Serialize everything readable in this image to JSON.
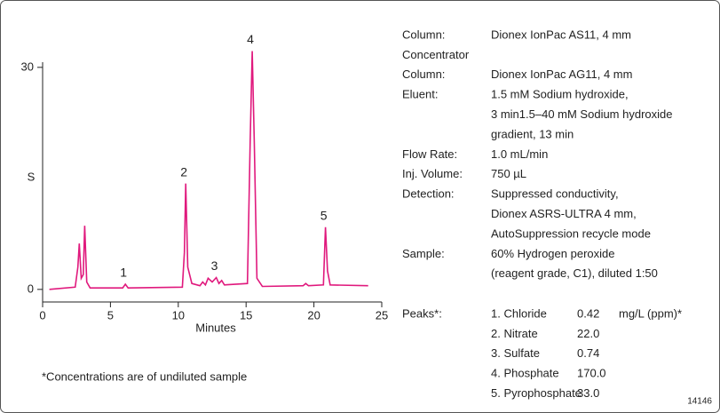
{
  "chart_data": {
    "type": "line",
    "x": [
      0.5,
      2.4,
      2.6,
      2.7,
      2.85,
      3.0,
      3.1,
      3.25,
      3.5,
      5.9,
      6.1,
      6.3,
      10.3,
      10.45,
      10.55,
      10.7,
      11.0,
      11.6,
      11.8,
      12.0,
      12.2,
      12.5,
      12.8,
      13.0,
      13.2,
      13.4,
      15.1,
      15.3,
      15.45,
      15.6,
      15.8,
      16.2,
      19.2,
      19.4,
      19.6,
      20.7,
      20.85,
      21.0,
      21.2,
      24.0
    ],
    "values": [
      0,
      0.3,
      3,
      6.2,
      1.5,
      2,
      8.6,
      1,
      0.2,
      0.2,
      0.7,
      0.2,
      0.3,
      5,
      14.3,
      3,
      0.8,
      0.5,
      1,
      0.6,
      1.5,
      1.0,
      1.6,
      0.8,
      1.2,
      0.6,
      0.8,
      20,
      32.2,
      20,
      1.5,
      0.4,
      0.5,
      0.8,
      0.5,
      0.6,
      8.4,
      2.5,
      0.6,
      0.5
    ],
    "color": "#e0197d",
    "xlim": [
      0,
      25
    ],
    "xticks": [
      0,
      5,
      10,
      15,
      20,
      25
    ],
    "ylim": [
      -1.7,
      30.7
    ],
    "yticks": [
      0,
      30
    ],
    "xlabel": "Minutes",
    "ylabel": "S",
    "annotations": [
      {
        "text": "1",
        "x": 6.1,
        "y": 0.7
      },
      {
        "text": "2",
        "x": 10.55,
        "y": 14.3
      },
      {
        "text": "3",
        "x": 12.8,
        "y": 1.6
      },
      {
        "text": "4",
        "x": 15.45,
        "y": 32.2
      },
      {
        "text": "5",
        "x": 20.85,
        "y": 8.4
      }
    ]
  },
  "conditions": [
    {
      "label": [
        "Column:"
      ],
      "value": [
        "Dionex IonPac AS11, 4 mm"
      ]
    },
    {
      "label": [
        "Concentrator",
        "Column:"
      ],
      "value": [
        "Dionex IonPac AG11, 4 mm"
      ]
    },
    {
      "label": [
        "Eluent:"
      ],
      "value": [
        "1.5 mM Sodium hydroxide,",
        "3 min1.5–40 mM Sodium hydroxide",
        "gradient, 13 min"
      ]
    },
    {
      "label": [
        "Flow Rate:"
      ],
      "value": [
        "1.0 mL/min"
      ]
    },
    {
      "label": [
        "Inj. Volume:"
      ],
      "value": [
        "750 µL"
      ]
    },
    {
      "label": [
        "Detection:"
      ],
      "value": [
        "Suppressed conductivity,",
        "Dionex ASRS-ULTRA 4 mm,",
        "AutoSuppression recycle mode"
      ]
    },
    {
      "label": [
        "Sample:"
      ],
      "value": [
        "60% Hydrogen peroxide",
        "(reagent grade, C1), diluted 1:50"
      ]
    }
  ],
  "peaks": {
    "label": "Peaks*:",
    "items": [
      {
        "name": "1. Chloride",
        "amount": "0.42",
        "unit": "mg/L (ppm)*"
      },
      {
        "name": "2. Nitrate",
        "amount": "22.0"
      },
      {
        "name": "3. Sulfate",
        "amount": "0.74"
      },
      {
        "name": "4. Phosphate",
        "amount": "170.0"
      },
      {
        "name": "5. Pyrophosphate",
        "amount": "33.0"
      }
    ]
  },
  "footnote": "*Concentrations are of undiluted sample",
  "figure_id": "14146"
}
